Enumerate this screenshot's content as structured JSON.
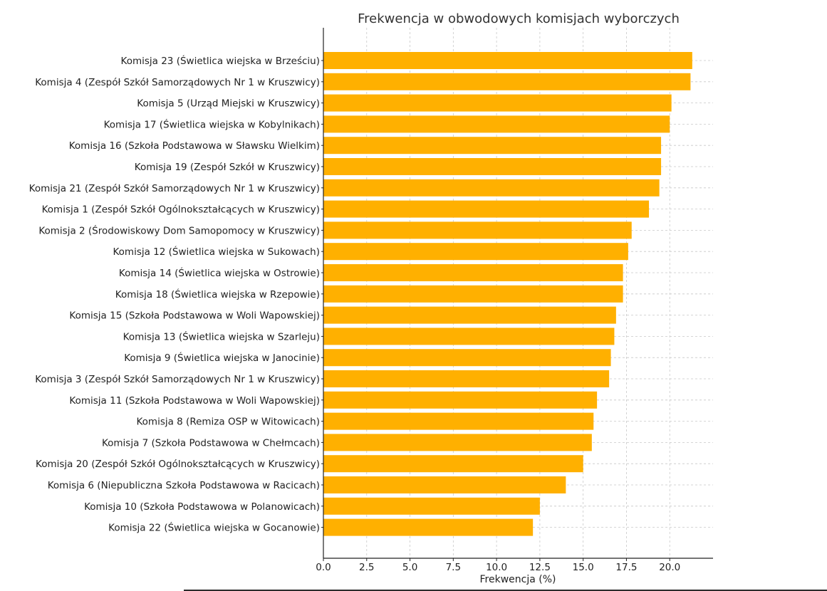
{
  "chart_data": {
    "type": "bar",
    "orientation": "horizontal",
    "title": "Frekwencja w obwodowych komisjach wyborczych",
    "xlabel": "Frekwencja (%)",
    "ylabel": "",
    "xlim": [
      0,
      22.5
    ],
    "xticks": [
      "0.0",
      "2.5",
      "5.0",
      "7.5",
      "10.0",
      "12.5",
      "15.0",
      "17.5",
      "20.0"
    ],
    "grid": true,
    "bar_color": "#FFB000",
    "categories": [
      "Komisja 23 (Świetlica wiejska w Brześciu)",
      "Komisja 4 (Zespół Szkół Samorządowych Nr 1 w Kruszwicy)",
      "Komisja 5 (Urząd Miejski w Kruszwicy)",
      "Komisja 17 (Świetlica wiejska w Kobylnikach)",
      "Komisja 16 (Szkoła Podstawowa w Sławsku Wielkim)",
      "Komisja 19 (Zespół Szkół w Kruszwicy)",
      "Komisja 21 (Zespół Szkół Samorządowych Nr 1 w Kruszwicy)",
      "Komisja 1 (Zespół Szkół Ogólnokształcących w Kruszwicy)",
      "Komisja 2 (Środowiskowy Dom Samopomocy w Kruszwicy)",
      "Komisja 12 (Świetlica wiejska w Sukowach)",
      "Komisja 14 (Świetlica wiejska w Ostrowie)",
      "Komisja 18 (Świetlica wiejska w Rzepowie)",
      "Komisja 15 (Szkoła Podstawowa w Woli Wapowskiej)",
      "Komisja 13 (Świetlica wiejska w Szarleju)",
      "Komisja 9 (Świetlica wiejska w Janocinie)",
      "Komisja 3 (Zespół Szkół Samorządowych Nr 1 w Kruszwicy)",
      "Komisja 11 (Szkoła Podstawowa w Woli Wapowskiej)",
      "Komisja 8 (Remiza OSP w Witowicach)",
      "Komisja 7 (Szkoła Podstawowa w Chełmcach)",
      "Komisja 20 (Zespół Szkół Ogólnokształcących w Kruszwicy)",
      "Komisja 6 (Niepubliczna Szkoła Podstawowa w Racicach)",
      "Komisja 10 (Szkoła Podstawowa w Polanowicach)",
      "Komisja 22 (Świetlica wiejska w Gocanowie)"
    ],
    "values": [
      21.3,
      21.2,
      20.1,
      20.0,
      19.5,
      19.5,
      19.4,
      18.8,
      17.8,
      17.6,
      17.3,
      17.3,
      16.9,
      16.8,
      16.6,
      16.5,
      15.8,
      15.6,
      15.5,
      15.0,
      14.0,
      12.5,
      12.1
    ]
  }
}
